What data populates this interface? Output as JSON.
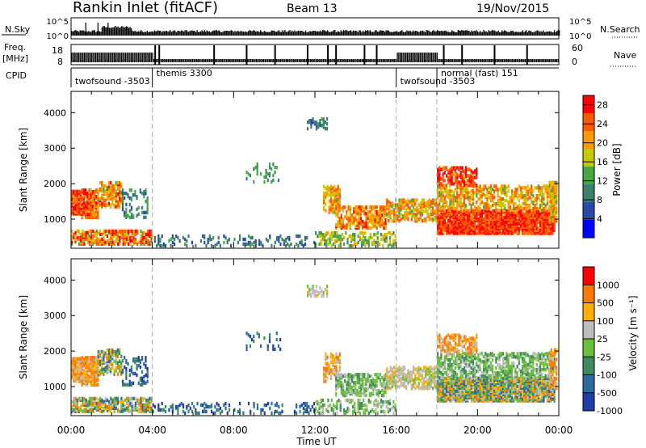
{
  "header": {
    "station": "Rankin Inlet (fitACF)",
    "beam": "Beam 13",
    "date": "19/Nov/2015"
  },
  "top_panels": {
    "nsky_label": "N.Sky",
    "nsky_ticks": [
      "10^5",
      "10^0"
    ],
    "nsearch_label": "N.Search",
    "freq_label_1": "Freq.",
    "freq_label_2": "[MHz]",
    "freq_ticks": [
      "18",
      "8"
    ],
    "nave_ticks": [
      "60",
      "0"
    ],
    "nave_label": "Nave",
    "cpid_label": "CPID",
    "cpid_segments": [
      {
        "start": 0,
        "end": 4,
        "label": "twofsound -3503"
      },
      {
        "start": 4,
        "end": 16,
        "label": "themis 3300"
      },
      {
        "start": 16,
        "end": 18,
        "label": "twofsound -3503"
      },
      {
        "start": 18,
        "end": 24,
        "label": "normal (fast) 151"
      }
    ]
  },
  "chart_data": [
    {
      "type": "heatmap",
      "panel": "power",
      "xlabel": "Time UT",
      "ylabel": "Slant Range [km]",
      "xlim": [
        0,
        24
      ],
      "ylim": [
        180,
        4600
      ],
      "yticks": [
        1000,
        2000,
        3000,
        4000
      ],
      "x_tick_labels": [
        "00:00",
        "04:00",
        "08:00",
        "12:00",
        "16:00",
        "20:00",
        "00:00"
      ],
      "colorbar_label": "Power [dB]",
      "colorbar_ticks": [
        "4",
        "8",
        "12",
        "16",
        "20",
        "24",
        "28"
      ],
      "colorbar_range": [
        0,
        30
      ],
      "colors": [
        "#0000ff",
        "#2a4aa8",
        "#3f7f6f",
        "#45a844",
        "#c8c800",
        "#ff9a00",
        "#ff5a00",
        "#ff0000"
      ],
      "mode_change_times": [
        4,
        16,
        18
      ]
    },
    {
      "type": "heatmap",
      "panel": "velocity",
      "xlabel": "Time UT",
      "ylabel": "Slant Range [km]",
      "xlim": [
        0,
        24
      ],
      "ylim": [
        180,
        4600
      ],
      "yticks": [
        1000,
        2000,
        3000,
        4000
      ],
      "x_tick_labels": [
        "00:00",
        "04:00",
        "08:00",
        "12:00",
        "16:00",
        "20:00",
        "00:00"
      ],
      "colorbar_label": "Velocity [m s⁻¹]",
      "colorbar_ticks": [
        "1000",
        "500",
        "100",
        "25",
        "-25",
        "-100",
        "-500",
        "-1000"
      ],
      "colors": [
        "#1f3faa",
        "#2e6aa0",
        "#3f8a5f",
        "#6cbf3a",
        "#bdbdbd",
        "#ffb000",
        "#ff7a00",
        "#ff0000"
      ],
      "mode_change_times": [
        4,
        16,
        18
      ]
    }
  ]
}
